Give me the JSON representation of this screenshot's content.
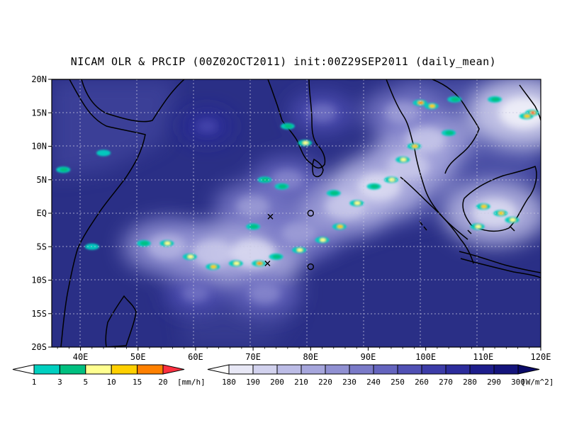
{
  "chart_data": {
    "type": "heatmap",
    "title": "NICAM OLR & PRCIP (00Z02OCT2011) init:00Z29SEP2011 (daily_mean)",
    "xlabel": "",
    "ylabel": "",
    "xlim": [
      35,
      120
    ],
    "ylim": [
      -20,
      20
    ],
    "x_ticks": [
      "40E",
      "50E",
      "60E",
      "70E",
      "80E",
      "90E",
      "100E",
      "110E",
      "120E"
    ],
    "y_ticks": [
      "20N",
      "15N",
      "10N",
      "5N",
      "EQ",
      "5S",
      "10S",
      "15S",
      "20S"
    ],
    "grid": true,
    "ocean_color": "#2a2f86",
    "coastline_color": "#000000",
    "olr_clouds": [
      {
        "lon": 70,
        "lat": -6,
        "olr": 200
      },
      {
        "lon": 63,
        "lat": -6,
        "olr": 210
      },
      {
        "lon": 55,
        "lat": -5,
        "olr": 220
      },
      {
        "lon": 78,
        "lat": -3,
        "olr": 230
      },
      {
        "lon": 86,
        "lat": 1,
        "olr": 215
      },
      {
        "lon": 92,
        "lat": 4,
        "olr": 205
      },
      {
        "lon": 97,
        "lat": 7,
        "olr": 210
      },
      {
        "lon": 100,
        "lat": 11,
        "olr": 215
      },
      {
        "lon": 96,
        "lat": 15,
        "olr": 230
      },
      {
        "lon": 76,
        "lat": 5,
        "olr": 240
      },
      {
        "lon": 70,
        "lat": 1,
        "olr": 235
      },
      {
        "lon": 112,
        "lat": 0,
        "olr": 200
      },
      {
        "lon": 117,
        "lat": 15,
        "olr": 190
      },
      {
        "lon": 82,
        "lat": 15,
        "olr": 250
      },
      {
        "lon": 62,
        "lat": 13,
        "olr": 270
      },
      {
        "lon": 72,
        "lat": -12,
        "olr": 240
      },
      {
        "lon": 60,
        "lat": -12,
        "olr": 255
      }
    ],
    "precip_cells": [
      {
        "lon": 118.5,
        "lat": 15,
        "mm": 20
      },
      {
        "lon": 117.5,
        "lat": 14.5,
        "mm": 10
      },
      {
        "lon": 99,
        "lat": 16.5,
        "mm": 15
      },
      {
        "lon": 101,
        "lat": 16,
        "mm": 10
      },
      {
        "lon": 98,
        "lat": 10,
        "mm": 10
      },
      {
        "lon": 96,
        "lat": 8,
        "mm": 5
      },
      {
        "lon": 94,
        "lat": 5,
        "mm": 5
      },
      {
        "lon": 91,
        "lat": 4,
        "mm": 3
      },
      {
        "lon": 88,
        "lat": 1.5,
        "mm": 5
      },
      {
        "lon": 85,
        "lat": -2,
        "mm": 10
      },
      {
        "lon": 82,
        "lat": -4,
        "mm": 5
      },
      {
        "lon": 78,
        "lat": -5.5,
        "mm": 5
      },
      {
        "lon": 74,
        "lat": -6.5,
        "mm": 3
      },
      {
        "lon": 71,
        "lat": -7.5,
        "mm": 15
      },
      {
        "lon": 67,
        "lat": -7.5,
        "mm": 5
      },
      {
        "lon": 63,
        "lat": -8,
        "mm": 10
      },
      {
        "lon": 59,
        "lat": -6.5,
        "mm": 5
      },
      {
        "lon": 55,
        "lat": -4.5,
        "mm": 5
      },
      {
        "lon": 51,
        "lat": -4.5,
        "mm": 3
      },
      {
        "lon": 110,
        "lat": 1,
        "mm": 10
      },
      {
        "lon": 113,
        "lat": 0,
        "mm": 10
      },
      {
        "lon": 115,
        "lat": -1,
        "mm": 5
      },
      {
        "lon": 109,
        "lat": -2,
        "mm": 5
      },
      {
        "lon": 79,
        "lat": 10.5,
        "mm": 5
      },
      {
        "lon": 76,
        "lat": 13,
        "mm": 3
      },
      {
        "lon": 75,
        "lat": 4,
        "mm": 3
      },
      {
        "lon": 72,
        "lat": 5,
        "mm": 3
      },
      {
        "lon": 70,
        "lat": -2,
        "mm": 3
      },
      {
        "lon": 84,
        "lat": 3,
        "mm": 3
      },
      {
        "lon": 104,
        "lat": 12,
        "mm": 3
      },
      {
        "lon": 105,
        "lat": 17,
        "mm": 3
      },
      {
        "lon": 112,
        "lat": 17,
        "mm": 3
      },
      {
        "lon": 37,
        "lat": 6.5,
        "mm": 3
      },
      {
        "lon": 42,
        "lat": -5,
        "mm": 1
      },
      {
        "lon": 44,
        "lat": 9,
        "mm": 1
      }
    ],
    "markers": [
      {
        "label": "x",
        "lon": 73,
        "lat": -0.5
      },
      {
        "label": "x",
        "lon": 72.5,
        "lat": -7.5
      },
      {
        "label": "o",
        "lon": 80,
        "lat": 0
      },
      {
        "label": "o",
        "lon": 80,
        "lat": -8
      }
    ],
    "legend_precip": {
      "levels": [
        "1",
        "3",
        "5",
        "10",
        "15",
        "20"
      ],
      "unit": "[mm/h]",
      "colors": [
        "#ffffff",
        "#00d0c0",
        "#00c080",
        "#ffff90",
        "#ffd000",
        "#ff8000",
        "#ff3040"
      ]
    },
    "legend_olr": {
      "levels": [
        "180",
        "190",
        "200",
        "210",
        "220",
        "230",
        "240",
        "250",
        "260",
        "270",
        "280",
        "290",
        "300"
      ],
      "unit": "[W/m^2]",
      "colors": [
        "#ffffff",
        "#e8e8f6",
        "#d2d2ee",
        "#bcbce6",
        "#a6a6dc",
        "#9090d2",
        "#7a7ac8",
        "#6464be",
        "#5050b4",
        "#3c3ca8",
        "#2c2c9c",
        "#1e1e8c",
        "#14147c",
        "#0a0a68"
      ]
    }
  }
}
